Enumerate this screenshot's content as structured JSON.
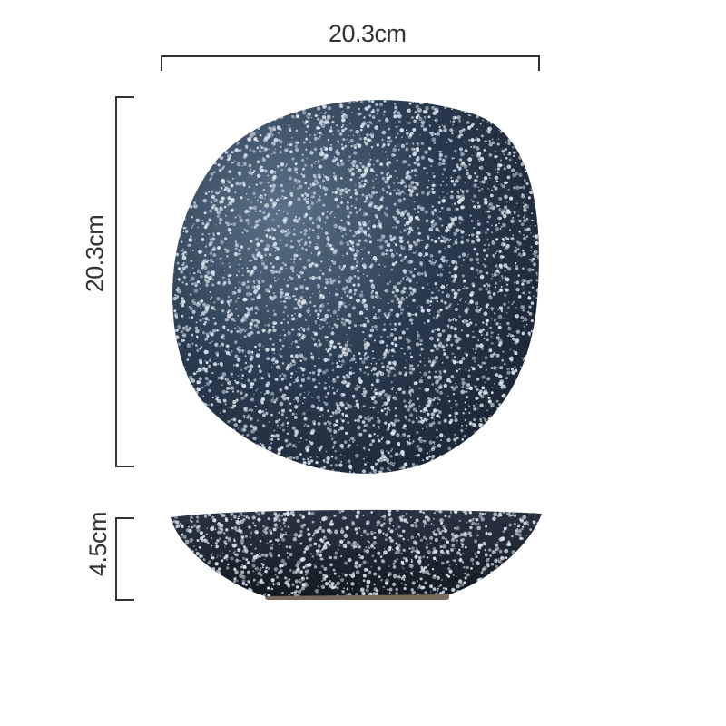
{
  "dimensions": {
    "width_label": "20.3cm",
    "length_label": "20.3cm",
    "height_label": "4.5cm"
  },
  "colors": {
    "glaze_dark": "#1c2838",
    "glaze_speckle": "#dfe8f0",
    "line": "#333333"
  }
}
